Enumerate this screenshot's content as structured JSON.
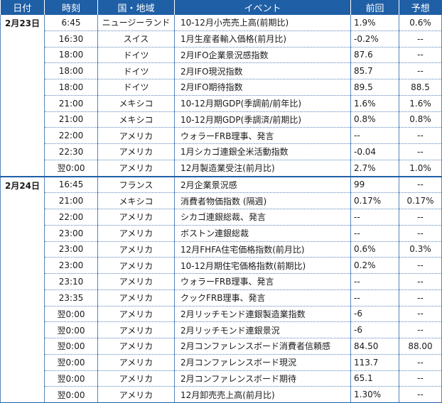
{
  "headers": {
    "date": "日付",
    "time": "時刻",
    "country": "国・地域",
    "event": "イベント",
    "previous": "前回",
    "forecast": "予想"
  },
  "groups": [
    {
      "date": "2月23日",
      "rows": [
        {
          "time": "6:45",
          "country": "ニュージーランド",
          "event": "10-12月小売売上高(前期比)",
          "previous": "1.9%",
          "forecast": "0.6%"
        },
        {
          "time": "16:30",
          "country": "スイス",
          "event": "1月生産者輸入価格(前月比)",
          "previous": "-0.2%",
          "forecast": "--"
        },
        {
          "time": "18:00",
          "country": "ドイツ",
          "event": "2月IFO企業景況感指数",
          "previous": "87.6",
          "forecast": "--"
        },
        {
          "time": "18:00",
          "country": "ドイツ",
          "event": "2月IFO現況指数",
          "previous": "85.7",
          "forecast": "--"
        },
        {
          "time": "18:00",
          "country": "ドイツ",
          "event": "2月IFO期待指数",
          "previous": "89.5",
          "forecast": "88.5"
        },
        {
          "time": "21:00",
          "country": "メキシコ",
          "event": "10-12月期GDP(季調前/前年比)",
          "previous": "1.6%",
          "forecast": "1.6%"
        },
        {
          "time": "21:00",
          "country": "メキシコ",
          "event": "10-12月期GDP(季調済/前期比)",
          "previous": "0.8%",
          "forecast": "0.8%"
        },
        {
          "time": "22:00",
          "country": "アメリカ",
          "event": "ウォラーFRB理事、発言",
          "previous": "--",
          "forecast": "--"
        },
        {
          "time": "22:30",
          "country": "アメリカ",
          "event": "1月シカゴ連銀全米活動指数",
          "previous": "-0.04",
          "forecast": "--"
        },
        {
          "time": "翌0:00",
          "country": "アメリカ",
          "event": "12月製造業受注(前月比)",
          "previous": "2.7%",
          "forecast": "1.0%"
        }
      ]
    },
    {
      "date": "2月24日",
      "rows": [
        {
          "time": "16:45",
          "country": "フランス",
          "event": "2月企業景況感",
          "previous": "99",
          "forecast": "--"
        },
        {
          "time": "21:00",
          "country": "メキシコ",
          "event": "消費者物価指数 (隔週)",
          "previous": "0.17%",
          "forecast": "0.17%"
        },
        {
          "time": "22:00",
          "country": "アメリカ",
          "event": "シカゴ連銀総裁、発言",
          "previous": "--",
          "forecast": "--"
        },
        {
          "time": "23:00",
          "country": "アメリカ",
          "event": "ボストン連銀総裁",
          "previous": "--",
          "forecast": "--"
        },
        {
          "time": "23:00",
          "country": "アメリカ",
          "event": "12月FHFA住宅価格指数(前月比)",
          "previous": "0.6%",
          "forecast": "0.3%"
        },
        {
          "time": "23:00",
          "country": "アメリカ",
          "event": "10-12月期住宅価格指数(前期比)",
          "previous": "0.2%",
          "forecast": "--"
        },
        {
          "time": "23:10",
          "country": "アメリカ",
          "event": "ウォラーFRB理事、発言",
          "previous": "--",
          "forecast": "--"
        },
        {
          "time": "23:35",
          "country": "アメリカ",
          "event": "クックFRB理事、発言",
          "previous": "--",
          "forecast": "--"
        },
        {
          "time": "翌0:00",
          "country": "アメリカ",
          "event": "2月リッチモンド連銀製造業指数",
          "previous": "-6",
          "forecast": "--"
        },
        {
          "time": "翌0:00",
          "country": "アメリカ",
          "event": "2月リッチモンド連銀景況",
          "previous": "-6",
          "forecast": "--"
        },
        {
          "time": "翌0:00",
          "country": "アメリカ",
          "event": "2月コンファレンスボード消費者信頼感",
          "previous": "84.50",
          "forecast": "88.00"
        },
        {
          "time": "翌0:00",
          "country": "アメリカ",
          "event": "2月コンファレンスボード現況",
          "previous": "113.7",
          "forecast": "--"
        },
        {
          "time": "翌0:00",
          "country": "アメリカ",
          "event": "2月コンファレンスボード期待",
          "previous": "65.1",
          "forecast": "--"
        },
        {
          "time": "翌0:00",
          "country": "アメリカ",
          "event": "12月卸売売上高(前月比)",
          "previous": "1.30%",
          "forecast": "--"
        }
      ]
    }
  ]
}
